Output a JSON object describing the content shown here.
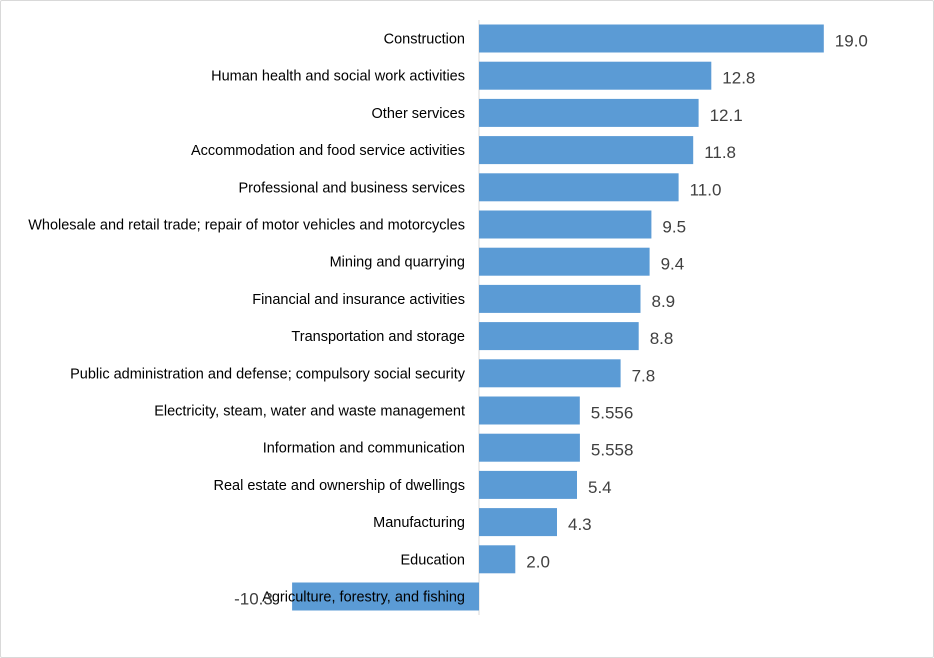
{
  "chart_data": {
    "type": "bar",
    "orientation": "horizontal",
    "title": "",
    "xlabel": "",
    "ylabel": "",
    "grid": false,
    "legend": "none",
    "bar_color": "#5b9bd5",
    "axis_color": "#d9d9d9",
    "categories": [
      "Construction",
      "Human health and social work activities",
      "Other services",
      "Accommodation and food service activities",
      "Professional and business services",
      "Wholesale and retail trade; repair of motor vehicles and motorcycles",
      "Mining and quarrying",
      "Financial and insurance activities",
      "Transportation and storage",
      "Public administration and defense; compulsory social security",
      "Electricity, steam, water and waste management",
      "Information and communication",
      "Real estate and ownership of dwellings",
      "Manufacturing",
      "Education",
      "Agriculture, forestry, and fishing"
    ],
    "values": [
      19.0,
      12.8,
      12.1,
      11.8,
      11.0,
      9.5,
      9.4,
      8.9,
      8.8,
      7.8,
      5.556,
      5.558,
      5.4,
      4.3,
      2.0,
      -10.3
    ],
    "value_labels": [
      "19.0",
      "12.8",
      "12.1",
      "11.8",
      "11.0",
      "9.5",
      "9.4",
      "8.9",
      "8.8",
      "7.8",
      "5.556",
      "5.558",
      "5.4",
      "4.3",
      "2.0",
      "-10.3"
    ]
  }
}
